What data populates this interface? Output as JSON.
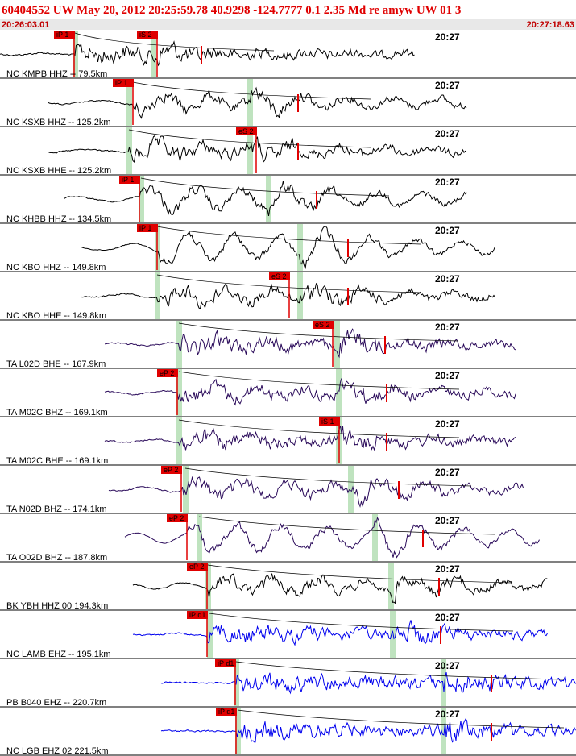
{
  "header": {
    "title": "60404552 UW May 20, 2012 20:25:59.78   40.9298 -124.7777  0.1 2.35 Md re amyw UW 01   3",
    "start_time": "20:26:03.01",
    "end_time": "20:27:18.63"
  },
  "traces": [
    {
      "station": "NC KMPB HHZ -- 79.5km",
      "time_label": "20:27",
      "picks": [
        "iP 1",
        "iS 2"
      ]
    },
    {
      "station": "NC KSXB HHZ -- 125.2km",
      "time_label": "20:27",
      "picks": [
        "iP 1"
      ]
    },
    {
      "station": "NC KSXB HHE -- 125.2km",
      "time_label": "20:27",
      "picks": [
        "eS 2"
      ]
    },
    {
      "station": "NC KHBB HHZ -- 134.5km",
      "time_label": "20:27",
      "picks": [
        "iP 1"
      ]
    },
    {
      "station": "NC KBO HHZ -- 149.8km",
      "time_label": "20:27",
      "picks": [
        "iP 1"
      ]
    },
    {
      "station": "NC KBO HHE -- 149.8km",
      "time_label": "20:27",
      "picks": [
        "eS 2"
      ]
    },
    {
      "station": "TA L02D BHE -- 167.9km",
      "time_label": "20:27",
      "picks": [
        "eS 2"
      ]
    },
    {
      "station": "TA M02C BHZ -- 169.1km",
      "time_label": "20:27",
      "picks": [
        "eP 2"
      ]
    },
    {
      "station": "TA M02C BHE -- 169.1km",
      "time_label": "20:27",
      "picks": [
        "iS 1"
      ]
    },
    {
      "station": "TA N02D BHZ -- 174.1km",
      "time_label": "20:27",
      "picks": [
        "eP 2"
      ]
    },
    {
      "station": "TA O02D BHZ -- 187.8km",
      "time_label": "20:27",
      "picks": [
        "eP 2"
      ]
    },
    {
      "station": "BK YBH HHZ 00 194.3km",
      "time_label": "20:27",
      "picks": [
        "eP 2"
      ]
    },
    {
      "station": "NC LAMB EHZ -- 195.1km",
      "time_label": "20:27",
      "picks": [
        "iP d1"
      ]
    },
    {
      "station": "PB B040 EHZ -- 220.7km",
      "time_label": "20:27",
      "picks": [
        "iP d1"
      ]
    },
    {
      "station": "NC LGB EHZ 02 221.5km",
      "time_label": "20:27",
      "picks": [
        "iP d1"
      ]
    }
  ]
}
